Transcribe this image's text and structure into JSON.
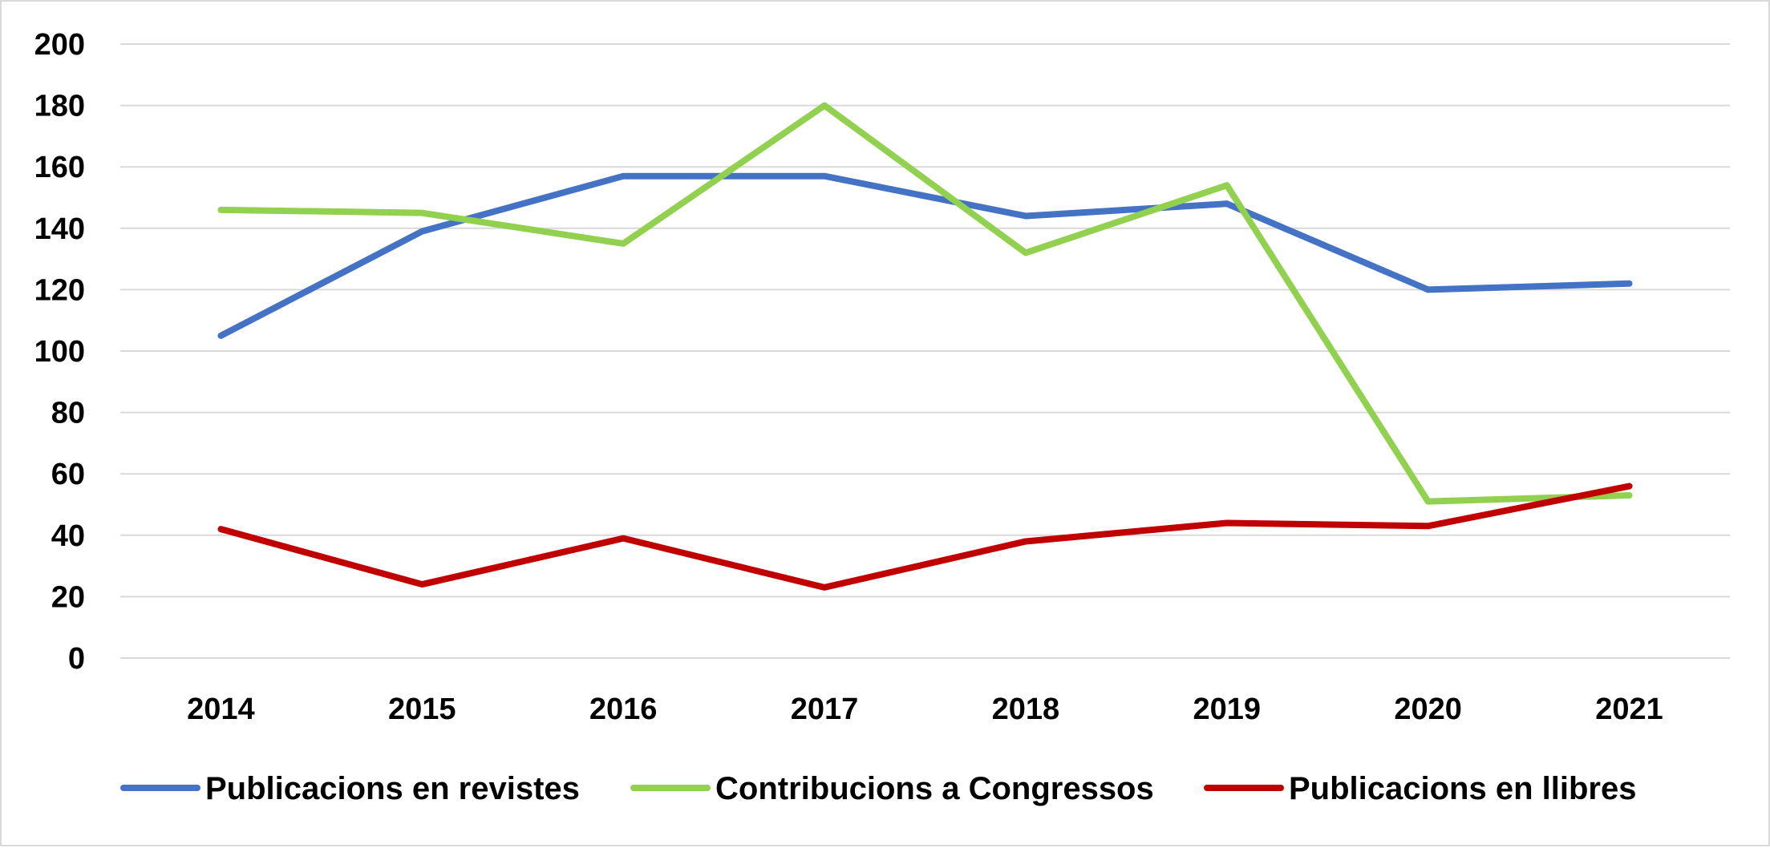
{
  "chart_data": {
    "type": "line",
    "categories": [
      "2014",
      "2015",
      "2016",
      "2017",
      "2018",
      "2019",
      "2020",
      "2021"
    ],
    "series": [
      {
        "name": "Publicacions en revistes",
        "color": "#4472c4",
        "values": [
          105,
          139,
          157,
          157,
          144,
          148,
          120,
          122
        ]
      },
      {
        "name": "Contribucions a Congressos",
        "color": "#92d050",
        "values": [
          146,
          145,
          135,
          180,
          132,
          154,
          51,
          53
        ]
      },
      {
        "name": "Publicacions en llibres",
        "color": "#c00000",
        "values": [
          42,
          24,
          39,
          23,
          38,
          44,
          43,
          56
        ]
      }
    ],
    "y_ticks": [
      "0",
      "20",
      "40",
      "60",
      "80",
      "100",
      "120",
      "140",
      "160",
      "180",
      "200"
    ],
    "ylim": [
      0,
      200
    ],
    "grid": true,
    "gridline_color": "#d9d9d9",
    "legend_position": "bottom",
    "title": "",
    "xlabel": "",
    "ylabel": ""
  }
}
